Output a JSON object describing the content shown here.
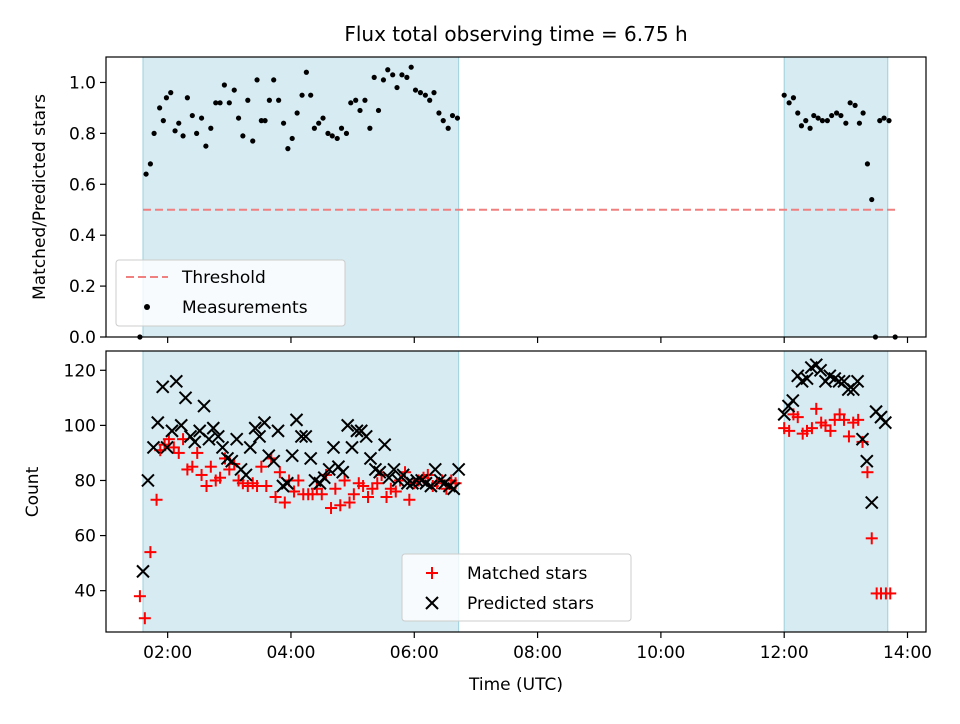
{
  "chart_data": [
    {
      "type": "scatter",
      "title": "Flux total observing time = 6.75 h",
      "xlabel": "",
      "ylabel": "Matched/Predicted stars",
      "ylim": [
        0,
        1.1
      ],
      "xlim": [
        1.0,
        14.3
      ],
      "x_tick_labels": [
        "02:00",
        "04:00",
        "06:00",
        "08:00",
        "10:00",
        "12:00",
        "14:00"
      ],
      "y_tick_labels": [
        "0.0",
        "0.2",
        "0.4",
        "0.6",
        "0.8",
        "1.0"
      ],
      "shaded_intervals": [
        [
          1.6,
          6.72
        ],
        [
          12.0,
          13.68
        ]
      ],
      "threshold": {
        "name": "Threshold",
        "value": 0.5,
        "x_range": [
          1.6,
          13.8
        ],
        "color": "#f08080"
      },
      "legend": {
        "placement": "lower-left",
        "entries": [
          "Threshold",
          "Measurements"
        ]
      },
      "series": [
        {
          "name": "Measurements",
          "color": "#000000",
          "marker": "dot",
          "x": [
            1.55,
            1.65,
            1.72,
            1.78,
            1.87,
            1.93,
            1.98,
            2.05,
            2.12,
            2.18,
            2.25,
            2.32,
            2.4,
            2.47,
            2.55,
            2.62,
            2.7,
            2.78,
            2.85,
            2.92,
            3.0,
            3.08,
            3.15,
            3.22,
            3.3,
            3.38,
            3.45,
            3.52,
            3.58,
            3.65,
            3.72,
            3.8,
            3.88,
            3.95,
            4.02,
            4.1,
            4.18,
            4.25,
            4.32,
            4.38,
            4.45,
            4.52,
            4.6,
            4.67,
            4.75,
            4.82,
            4.9,
            4.97,
            5.05,
            5.12,
            5.2,
            5.28,
            5.35,
            5.42,
            5.5,
            5.57,
            5.65,
            5.72,
            5.8,
            5.88,
            5.95,
            6.02,
            6.1,
            6.18,
            6.25,
            6.32,
            6.4,
            6.47,
            6.55,
            6.62,
            6.7,
            12.0,
            12.08,
            12.15,
            12.22,
            12.28,
            12.35,
            12.42,
            12.48,
            12.55,
            12.62,
            12.7,
            12.77,
            12.85,
            12.92,
            13.0,
            13.07,
            13.15,
            13.22,
            13.28,
            13.35,
            13.42,
            13.48,
            13.55,
            13.62,
            13.7,
            13.8
          ],
          "y": [
            0.0,
            0.64,
            0.68,
            0.8,
            0.9,
            0.85,
            0.94,
            0.96,
            0.81,
            0.84,
            0.79,
            0.94,
            0.87,
            0.8,
            0.86,
            0.75,
            0.82,
            0.92,
            0.92,
            0.99,
            0.92,
            0.97,
            0.86,
            0.79,
            0.93,
            0.77,
            1.01,
            0.85,
            0.85,
            0.93,
            1.01,
            0.93,
            0.84,
            0.74,
            0.78,
            0.88,
            0.95,
            1.04,
            0.95,
            0.82,
            0.84,
            0.86,
            0.8,
            0.79,
            0.78,
            0.82,
            0.8,
            0.92,
            0.93,
            0.89,
            0.93,
            0.82,
            1.02,
            0.89,
            1.01,
            1.05,
            1.03,
            0.98,
            1.03,
            1.02,
            1.06,
            0.97,
            0.96,
            0.95,
            0.93,
            0.96,
            0.88,
            0.85,
            0.82,
            0.87,
            0.86,
            0.95,
            0.92,
            0.94,
            0.88,
            0.83,
            0.85,
            0.82,
            0.87,
            0.86,
            0.85,
            0.85,
            0.87,
            0.88,
            0.87,
            0.84,
            0.92,
            0.91,
            0.84,
            0.88,
            0.68,
            0.54,
            0.0,
            0.85,
            0.86,
            0.85,
            0.0
          ],
          "note_x_units": "hours UTC"
        }
      ]
    },
    {
      "type": "scatter",
      "title": "",
      "xlabel": "Time (UTC)",
      "ylabel": "Count",
      "ylim": [
        25,
        127
      ],
      "xlim": [
        1.0,
        14.3
      ],
      "x_tick_labels": [
        "02:00",
        "04:00",
        "06:00",
        "08:00",
        "10:00",
        "12:00",
        "14:00"
      ],
      "y_tick_labels": [
        "40",
        "60",
        "80",
        "100",
        "120"
      ],
      "shaded_intervals": [
        [
          1.6,
          6.72
        ],
        [
          12.0,
          13.68
        ]
      ],
      "legend": {
        "placement": "lower-center",
        "entries": [
          "Matched stars",
          "Predicted stars"
        ]
      },
      "series": [
        {
          "name": "Matched stars",
          "color": "#ff0000",
          "marker": "plus",
          "x": [
            1.55,
            1.63,
            1.72,
            1.82,
            1.88,
            1.95,
            2.02,
            2.1,
            2.18,
            2.25,
            2.32,
            2.4,
            2.48,
            2.55,
            2.63,
            2.7,
            2.78,
            2.85,
            2.93,
            3.0,
            3.08,
            3.15,
            3.22,
            3.3,
            3.38,
            3.45,
            3.52,
            3.6,
            3.68,
            3.75,
            3.82,
            3.9,
            3.97,
            4.05,
            4.12,
            4.2,
            4.28,
            4.35,
            4.42,
            4.5,
            4.57,
            4.65,
            4.72,
            4.8,
            4.87,
            4.95,
            5.02,
            5.1,
            5.17,
            5.25,
            5.32,
            5.4,
            5.47,
            5.55,
            5.62,
            5.7,
            5.77,
            5.85,
            5.92,
            6.0,
            6.07,
            6.15,
            6.22,
            6.3,
            6.37,
            6.45,
            6.52,
            6.6,
            6.67,
            12.0,
            12.08,
            12.15,
            12.22,
            12.3,
            12.37,
            12.45,
            12.52,
            12.6,
            12.67,
            12.75,
            12.82,
            12.9,
            12.97,
            13.05,
            13.12,
            13.2,
            13.27,
            13.35,
            13.42,
            13.5,
            13.57,
            13.65,
            13.72
          ],
          "y": [
            38,
            30,
            54,
            73,
            91,
            93,
            95,
            92,
            90,
            95,
            84,
            85,
            90,
            82,
            78,
            85,
            80,
            81,
            88,
            84,
            86,
            80,
            79,
            78,
            79,
            78,
            85,
            78,
            88,
            74,
            83,
            72,
            80,
            76,
            80,
            75,
            75,
            75,
            77,
            75,
            82,
            70,
            77,
            71,
            80,
            72,
            75,
            79,
            78,
            74,
            77,
            79,
            82,
            74,
            77,
            76,
            80,
            83,
            73,
            79,
            80,
            81,
            82,
            78,
            79,
            80,
            77,
            80,
            79,
            99,
            98,
            104,
            103,
            97,
            98,
            99,
            106,
            101,
            100,
            98,
            102,
            104,
            102,
            96,
            101,
            102,
            94,
            83,
            59,
            39,
            39,
            39,
            39
          ]
        },
        {
          "name": "Predicted stars",
          "color": "#000000",
          "marker": "x",
          "x": [
            1.6,
            1.68,
            1.77,
            1.84,
            1.92,
            1.99,
            2.07,
            2.14,
            2.22,
            2.29,
            2.37,
            2.44,
            2.52,
            2.59,
            2.67,
            2.74,
            2.82,
            2.89,
            2.97,
            3.04,
            3.12,
            3.19,
            3.27,
            3.34,
            3.42,
            3.49,
            3.57,
            3.64,
            3.72,
            3.79,
            3.87,
            3.94,
            4.02,
            4.09,
            4.17,
            4.24,
            4.32,
            4.39,
            4.47,
            4.54,
            4.62,
            4.69,
            4.77,
            4.84,
            4.92,
            4.99,
            5.07,
            5.14,
            5.22,
            5.29,
            5.37,
            5.44,
            5.52,
            5.59,
            5.67,
            5.74,
            5.82,
            5.89,
            5.97,
            6.04,
            6.12,
            6.19,
            6.27,
            6.34,
            6.42,
            6.49,
            6.57,
            6.64,
            6.72,
            12.0,
            12.07,
            12.14,
            12.22,
            12.29,
            12.37,
            12.44,
            12.52,
            12.59,
            12.67,
            12.74,
            12.82,
            12.89,
            12.97,
            13.04,
            13.12,
            13.19,
            13.27,
            13.34,
            13.42,
            13.49,
            13.57,
            13.64
          ],
          "y": [
            47,
            80,
            92,
            101,
            114,
            92,
            98,
            116,
            100,
            110,
            96,
            94,
            98,
            107,
            95,
            99,
            96,
            92,
            88,
            87,
            95,
            84,
            82,
            92,
            99,
            96,
            101,
            89,
            87,
            98,
            78,
            79,
            89,
            102,
            96,
            96,
            88,
            80,
            79,
            81,
            84,
            92,
            85,
            83,
            100,
            92,
            98,
            98,
            96,
            88,
            84,
            83,
            93,
            81,
            84,
            80,
            82,
            79,
            79,
            80,
            80,
            79,
            78,
            84,
            80,
            79,
            78,
            77,
            84,
            104,
            107,
            109,
            118,
            116,
            117,
            121,
            122,
            120,
            116,
            118,
            117,
            116,
            116,
            113,
            113,
            116,
            95,
            87,
            72,
            105,
            103,
            101
          ]
        }
      ]
    }
  ]
}
